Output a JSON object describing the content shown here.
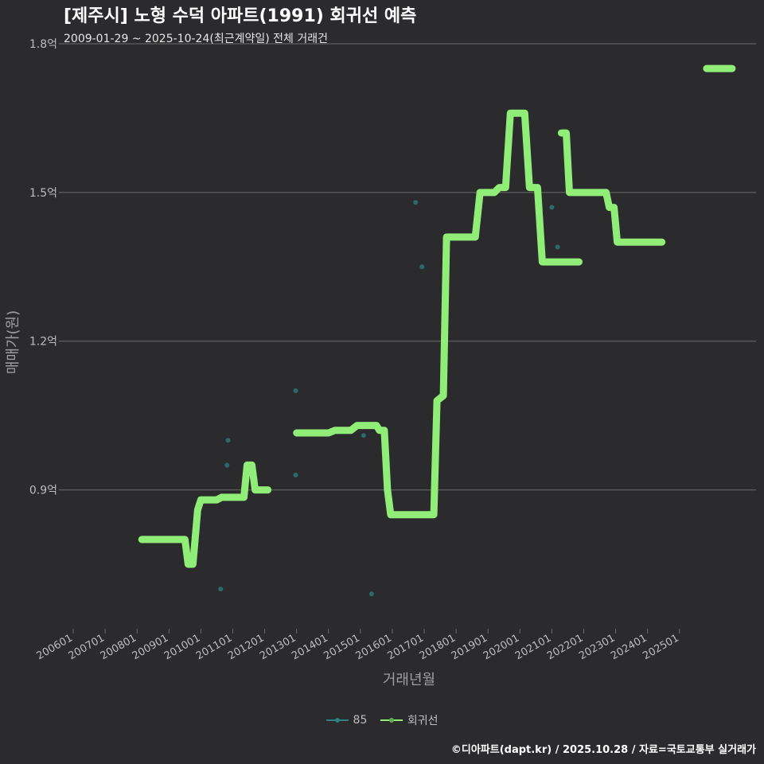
{
  "title": "[제주시] 노형 수덕 아파트(1991) 회귀선 예측",
  "subtitle": "2009-01-29 ~ 2025-10-24(최근계약일) 전체 거래건",
  "footer": "©디아파트(dapt.kr) / 2025.10.28 / 자료=국토교통부 실거래가",
  "colors": {
    "background": "#2b2b2d",
    "grid": "#6b6b6b",
    "regression": "#90ee78",
    "points": "#2e7f7f"
  },
  "chart_data": {
    "type": "line",
    "title": "[제주시] 노형 수덕 아파트(1991) 회귀선 예측",
    "xlabel": "거래년월",
    "ylabel": "매매가(원)",
    "ylim": [
      0.62,
      1.8
    ],
    "yticks": [
      0.9,
      1.2,
      1.5,
      1.8
    ],
    "ytick_labels": [
      "0.9억",
      "1.2억",
      "1.5억",
      "1.8억"
    ],
    "xlim": [
      2005.7,
      2027.4
    ],
    "xticks": [
      2006,
      2007,
      2008,
      2009,
      2010,
      2011,
      2012,
      2013,
      2014,
      2015,
      2016,
      2017,
      2018,
      2019,
      2020,
      2021,
      2022,
      2023,
      2024,
      2025
    ],
    "xtick_labels": [
      "200601",
      "200701",
      "200801",
      "200901",
      "201001",
      "201101",
      "201201",
      "201301",
      "201401",
      "201501",
      "201601",
      "201701",
      "201801",
      "201901",
      "202001",
      "202101",
      "202201",
      "202301",
      "202401",
      "202501"
    ],
    "legend": [
      {
        "name": "85",
        "color": "#2e7f7f"
      },
      {
        "name": "회귀선",
        "color": "#90ee78"
      }
    ],
    "series": [
      {
        "name": "85",
        "type": "scatter",
        "points": [
          [
            2010.62,
            0.7
          ],
          [
            2010.85,
            1.0
          ],
          [
            2010.82,
            0.95
          ],
          [
            2012.97,
            1.1
          ],
          [
            2012.97,
            0.93
          ],
          [
            2015.1,
            1.01
          ],
          [
            2015.35,
            0.69
          ],
          [
            2016.73,
            1.48
          ],
          [
            2016.93,
            1.35
          ],
          [
            2021.0,
            1.47
          ],
          [
            2021.18,
            1.39
          ]
        ]
      },
      {
        "name": "회귀선",
        "type": "line",
        "segments": [
          [
            [
              2008.15,
              0.8
            ],
            [
              2009.5,
              0.8
            ],
            [
              2009.6,
              0.75
            ],
            [
              2009.75,
              0.75
            ],
            [
              2009.9,
              0.86
            ],
            [
              2010.0,
              0.88
            ],
            [
              2010.5,
              0.88
            ],
            [
              2010.65,
              0.885
            ],
            [
              2011.0,
              0.885
            ],
            [
              2011.35,
              0.885
            ],
            [
              2011.45,
              0.95
            ],
            [
              2011.6,
              0.95
            ],
            [
              2011.7,
              0.9
            ],
            [
              2012.1,
              0.9
            ]
          ],
          [
            [
              2013.0,
              1.015
            ],
            [
              2014.0,
              1.015
            ],
            [
              2014.2,
              1.02
            ],
            [
              2014.7,
              1.02
            ],
            [
              2014.9,
              1.03
            ],
            [
              2015.5,
              1.03
            ],
            [
              2015.6,
              1.02
            ],
            [
              2015.75,
              1.02
            ],
            [
              2015.85,
              0.9
            ],
            [
              2015.95,
              0.85
            ],
            [
              2017.3,
              0.85
            ],
            [
              2017.4,
              1.08
            ],
            [
              2017.6,
              1.09
            ],
            [
              2017.7,
              1.41
            ],
            [
              2018.6,
              1.41
            ],
            [
              2018.75,
              1.5
            ],
            [
              2019.2,
              1.5
            ],
            [
              2019.35,
              1.51
            ],
            [
              2019.55,
              1.51
            ],
            [
              2019.7,
              1.66
            ],
            [
              2020.15,
              1.66
            ],
            [
              2020.3,
              1.51
            ],
            [
              2020.55,
              1.51
            ],
            [
              2020.7,
              1.36
            ],
            [
              2021.85,
              1.36
            ]
          ],
          [
            [
              2021.3,
              1.62
            ],
            [
              2021.45,
              1.62
            ],
            [
              2021.55,
              1.5
            ],
            [
              2022.7,
              1.5
            ],
            [
              2022.8,
              1.47
            ],
            [
              2022.95,
              1.47
            ],
            [
              2023.05,
              1.4
            ],
            [
              2023.2,
              1.4
            ],
            [
              2024.45,
              1.4
            ]
          ],
          [
            [
              2025.85,
              1.75
            ],
            [
              2026.65,
              1.75
            ]
          ]
        ]
      }
    ]
  }
}
